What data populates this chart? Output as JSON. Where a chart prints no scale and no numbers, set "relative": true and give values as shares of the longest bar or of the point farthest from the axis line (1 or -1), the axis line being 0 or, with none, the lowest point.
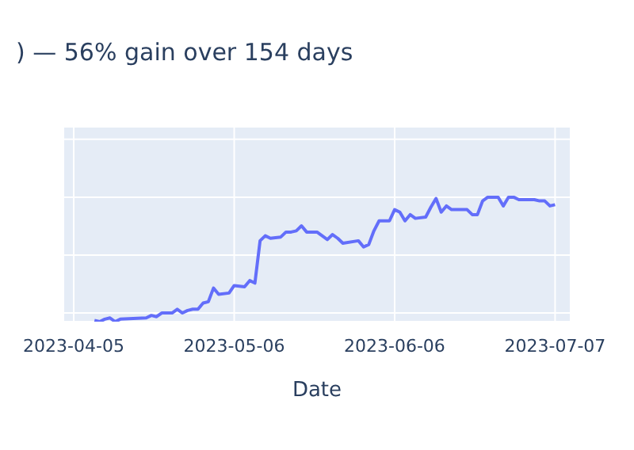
{
  "chart_data": {
    "type": "line",
    "title": ") — 56% gain over 154 days",
    "xlabel": "Date",
    "relative": true,
    "grid": true,
    "xlim": [
      "2023-04-03",
      "2023-07-10"
    ],
    "xticks": [
      "2023-04-05",
      "2023-05-06",
      "2023-06-06",
      "2023-07-07"
    ],
    "x": [
      "2023-04-09",
      "2023-04-10",
      "2023-04-11",
      "2023-04-12",
      "2023-04-13",
      "2023-04-14",
      "2023-04-19",
      "2023-04-20",
      "2023-04-21",
      "2023-04-22",
      "2023-04-24",
      "2023-04-25",
      "2023-04-26",
      "2023-04-27",
      "2023-04-28",
      "2023-04-29",
      "2023-04-30",
      "2023-05-01",
      "2023-05-02",
      "2023-05-03",
      "2023-05-05",
      "2023-05-06",
      "2023-05-08",
      "2023-05-09",
      "2023-05-10",
      "2023-05-11",
      "2023-05-12",
      "2023-05-13",
      "2023-05-15",
      "2023-05-16",
      "2023-05-17",
      "2023-05-18",
      "2023-05-19",
      "2023-05-20",
      "2023-05-22",
      "2023-05-23",
      "2023-05-24",
      "2023-05-25",
      "2023-05-26",
      "2023-05-27",
      "2023-05-30",
      "2023-05-31",
      "2023-06-01",
      "2023-06-02",
      "2023-06-03",
      "2023-06-05",
      "2023-06-06",
      "2023-06-07",
      "2023-06-08",
      "2023-06-09",
      "2023-06-10",
      "2023-06-12",
      "2023-06-13",
      "2023-06-14",
      "2023-06-15",
      "2023-06-16",
      "2023-06-17",
      "2023-06-20",
      "2023-06-21",
      "2023-06-22",
      "2023-06-23",
      "2023-06-24",
      "2023-06-26",
      "2023-06-27",
      "2023-06-28",
      "2023-06-29",
      "2023-06-30",
      "2023-07-03",
      "2023-07-04",
      "2023-07-05",
      "2023-07-06",
      "2023-07-07"
    ],
    "series": [
      {
        "color": "#636efa",
        "values": [
          0.01,
          0,
          0.02,
          0.03,
          0.0,
          0.02,
          0.03,
          0.05,
          0.04,
          0.07,
          0.07,
          0.1,
          0.07,
          0.09,
          0.1,
          0.1,
          0.15,
          0.16,
          0.27,
          0.22,
          0.23,
          0.29,
          0.28,
          0.33,
          0.31,
          0.65,
          0.69,
          0.67,
          0.68,
          0.72,
          0.72,
          0.73,
          0.77,
          0.72,
          0.72,
          0.69,
          0.66,
          0.7,
          0.67,
          0.63,
          0.65,
          0.6,
          0.62,
          0.73,
          0.81,
          0.81,
          0.9,
          0.88,
          0.81,
          0.86,
          0.83,
          0.84,
          0.92,
          0.99,
          0.88,
          0.93,
          0.9,
          0.9,
          0.86,
          0.86,
          0.97,
          1.0,
          1.0,
          0.93,
          1.0,
          1.0,
          0.98,
          0.98,
          0.97,
          0.97,
          0.93,
          0.94
        ]
      }
    ]
  }
}
